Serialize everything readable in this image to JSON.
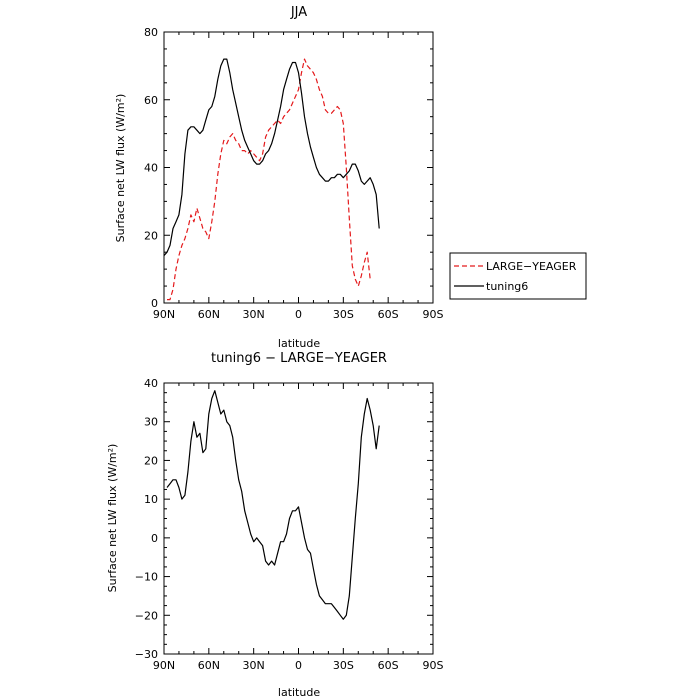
{
  "chart_data": [
    {
      "type": "line",
      "title": "JJA",
      "xlabel": "latitude",
      "ylabel": "Surface net LW flux (W/m²)",
      "xlim": [
        -90,
        90
      ],
      "ylim": [
        0,
        80
      ],
      "x_ticks": [
        {
          "value": -90,
          "label": "90N"
        },
        {
          "value": -60,
          "label": "60N"
        },
        {
          "value": -30,
          "label": "30N"
        },
        {
          "value": 0,
          "label": "0"
        },
        {
          "value": 30,
          "label": "30S"
        },
        {
          "value": 60,
          "label": "60S"
        },
        {
          "value": 90,
          "label": "90S"
        }
      ],
      "y_ticks": [
        0,
        20,
        40,
        60,
        80
      ],
      "legend": "outside-right",
      "series": [
        {
          "name": "LARGE−YEAGER",
          "color": "#e41a1c",
          "dash": "dashed",
          "points": [
            [
              -88,
              1
            ],
            [
              -86,
              1
            ],
            [
              -84,
              4
            ],
            [
              -82,
              10
            ],
            [
              -80,
              14
            ],
            [
              -78,
              17
            ],
            [
              -76,
              19
            ],
            [
              -74,
              22
            ],
            [
              -72,
              26
            ],
            [
              -70,
              24
            ],
            [
              -68,
              28
            ],
            [
              -66,
              25
            ],
            [
              -64,
              22
            ],
            [
              -62,
              21
            ],
            [
              -60,
              19
            ],
            [
              -58,
              24
            ],
            [
              -56,
              30
            ],
            [
              -54,
              38
            ],
            [
              -52,
              44
            ],
            [
              -50,
              48
            ],
            [
              -48,
              47
            ],
            [
              -46,
              49
            ],
            [
              -44,
              50
            ],
            [
              -42,
              48
            ],
            [
              -40,
              47
            ],
            [
              -38,
              45
            ],
            [
              -36,
              45
            ],
            [
              -34,
              44
            ],
            [
              -32,
              45
            ],
            [
              -30,
              44
            ],
            [
              -28,
              43
            ],
            [
              -26,
              42
            ],
            [
              -24,
              44
            ],
            [
              -22,
              49
            ],
            [
              -20,
              51
            ],
            [
              -18,
              52
            ],
            [
              -16,
              53
            ],
            [
              -14,
              54
            ],
            [
              -12,
              53
            ],
            [
              -10,
              55
            ],
            [
              -8,
              56
            ],
            [
              -6,
              57
            ],
            [
              -4,
              59
            ],
            [
              -2,
              61
            ],
            [
              0,
              63
            ],
            [
              2,
              68
            ],
            [
              4,
              72
            ],
            [
              6,
              70
            ],
            [
              8,
              69
            ],
            [
              10,
              68
            ],
            [
              12,
              66
            ],
            [
              14,
              63
            ],
            [
              16,
              61
            ],
            [
              18,
              57
            ],
            [
              20,
              56
            ],
            [
              22,
              56
            ],
            [
              24,
              57
            ],
            [
              26,
              58
            ],
            [
              28,
              57
            ],
            [
              30,
              53
            ],
            [
              32,
              40
            ],
            [
              34,
              25
            ],
            [
              36,
              11
            ],
            [
              38,
              7
            ],
            [
              40,
              5
            ],
            [
              42,
              8
            ],
            [
              44,
              12
            ],
            [
              46,
              15
            ],
            [
              48,
              7
            ]
          ]
        },
        {
          "name": "tuning6",
          "color": "#000000",
          "dash": "solid",
          "points": [
            [
              -90,
              14
            ],
            [
              -88,
              15
            ],
            [
              -86,
              17
            ],
            [
              -84,
              22
            ],
            [
              -82,
              24
            ],
            [
              -80,
              26
            ],
            [
              -78,
              32
            ],
            [
              -76,
              44
            ],
            [
              -74,
              51
            ],
            [
              -72,
              52
            ],
            [
              -70,
              52
            ],
            [
              -68,
              51
            ],
            [
              -66,
              50
            ],
            [
              -64,
              51
            ],
            [
              -62,
              54
            ],
            [
              -60,
              57
            ],
            [
              -58,
              58
            ],
            [
              -56,
              61
            ],
            [
              -54,
              66
            ],
            [
              -52,
              70
            ],
            [
              -50,
              72
            ],
            [
              -48,
              72
            ],
            [
              -46,
              68
            ],
            [
              -44,
              63
            ],
            [
              -42,
              59
            ],
            [
              -40,
              55
            ],
            [
              -38,
              51
            ],
            [
              -36,
              48
            ],
            [
              -34,
              46
            ],
            [
              -32,
              44
            ],
            [
              -30,
              42
            ],
            [
              -28,
              41
            ],
            [
              -26,
              41
            ],
            [
              -24,
              42
            ],
            [
              -22,
              44
            ],
            [
              -20,
              45
            ],
            [
              -18,
              47
            ],
            [
              -16,
              50
            ],
            [
              -14,
              54
            ],
            [
              -12,
              58
            ],
            [
              -10,
              63
            ],
            [
              -8,
              66
            ],
            [
              -6,
              69
            ],
            [
              -4,
              71
            ],
            [
              -2,
              71
            ],
            [
              0,
              68
            ],
            [
              2,
              62
            ],
            [
              4,
              55
            ],
            [
              6,
              50
            ],
            [
              8,
              46
            ],
            [
              10,
              43
            ],
            [
              12,
              40
            ],
            [
              14,
              38
            ],
            [
              16,
              37
            ],
            [
              18,
              36
            ],
            [
              20,
              36
            ],
            [
              22,
              37
            ],
            [
              24,
              37
            ],
            [
              26,
              38
            ],
            [
              28,
              38
            ],
            [
              30,
              37
            ],
            [
              32,
              38
            ],
            [
              34,
              39
            ],
            [
              36,
              41
            ],
            [
              38,
              41
            ],
            [
              40,
              39
            ],
            [
              42,
              36
            ],
            [
              44,
              35
            ],
            [
              46,
              36
            ],
            [
              48,
              37
            ],
            [
              50,
              35
            ],
            [
              52,
              32
            ],
            [
              54,
              22
            ]
          ]
        }
      ]
    },
    {
      "type": "line",
      "title": "tuning6 − LARGE−YEAGER",
      "xlabel": "latitude",
      "ylabel": "Surface net LW flux (W/m²)",
      "xlim": [
        -90,
        90
      ],
      "ylim": [
        -30,
        40
      ],
      "x_ticks": [
        {
          "value": -90,
          "label": "90N"
        },
        {
          "value": -60,
          "label": "60N"
        },
        {
          "value": -30,
          "label": "30N"
        },
        {
          "value": 0,
          "label": "0"
        },
        {
          "value": 30,
          "label": "30S"
        },
        {
          "value": 60,
          "label": "60S"
        },
        {
          "value": 90,
          "label": "90S"
        }
      ],
      "y_ticks": [
        -30,
        -20,
        -10,
        0,
        10,
        20,
        30,
        40
      ],
      "series": [
        {
          "color": "#000000",
          "dash": "solid",
          "points": [
            [
              -88,
              13
            ],
            [
              -86,
              14
            ],
            [
              -84,
              15
            ],
            [
              -82,
              15
            ],
            [
              -80,
              13
            ],
            [
              -78,
              10
            ],
            [
              -76,
              11
            ],
            [
              -74,
              17
            ],
            [
              -72,
              25
            ],
            [
              -70,
              30
            ],
            [
              -68,
              26
            ],
            [
              -66,
              27
            ],
            [
              -64,
              22
            ],
            [
              -62,
              23
            ],
            [
              -60,
              32
            ],
            [
              -58,
              36
            ],
            [
              -56,
              38
            ],
            [
              -54,
              35
            ],
            [
              -52,
              32
            ],
            [
              -50,
              33
            ],
            [
              -48,
              30
            ],
            [
              -46,
              29
            ],
            [
              -44,
              26
            ],
            [
              -42,
              20
            ],
            [
              -40,
              15
            ],
            [
              -38,
              12
            ],
            [
              -36,
              7
            ],
            [
              -34,
              4
            ],
            [
              -32,
              1
            ],
            [
              -30,
              -1
            ],
            [
              -28,
              0
            ],
            [
              -26,
              -1
            ],
            [
              -24,
              -2
            ],
            [
              -22,
              -6
            ],
            [
              -20,
              -7
            ],
            [
              -18,
              -6
            ],
            [
              -16,
              -7
            ],
            [
              -14,
              -4
            ],
            [
              -12,
              -1
            ],
            [
              -10,
              -1
            ],
            [
              -8,
              1
            ],
            [
              -6,
              5
            ],
            [
              -4,
              7
            ],
            [
              -2,
              7
            ],
            [
              0,
              8
            ],
            [
              2,
              4
            ],
            [
              4,
              0
            ],
            [
              6,
              -3
            ],
            [
              8,
              -4
            ],
            [
              10,
              -8
            ],
            [
              12,
              -12
            ],
            [
              14,
              -15
            ],
            [
              16,
              -16
            ],
            [
              18,
              -17
            ],
            [
              20,
              -17
            ],
            [
              22,
              -17
            ],
            [
              24,
              -18
            ],
            [
              26,
              -19
            ],
            [
              28,
              -20
            ],
            [
              30,
              -21
            ],
            [
              32,
              -20
            ],
            [
              34,
              -15
            ],
            [
              36,
              -5
            ],
            [
              38,
              5
            ],
            [
              40,
              14
            ],
            [
              42,
              26
            ],
            [
              44,
              32
            ],
            [
              46,
              36
            ],
            [
              48,
              33
            ],
            [
              50,
              29
            ],
            [
              52,
              23
            ],
            [
              54,
              29
            ]
          ]
        }
      ]
    }
  ]
}
